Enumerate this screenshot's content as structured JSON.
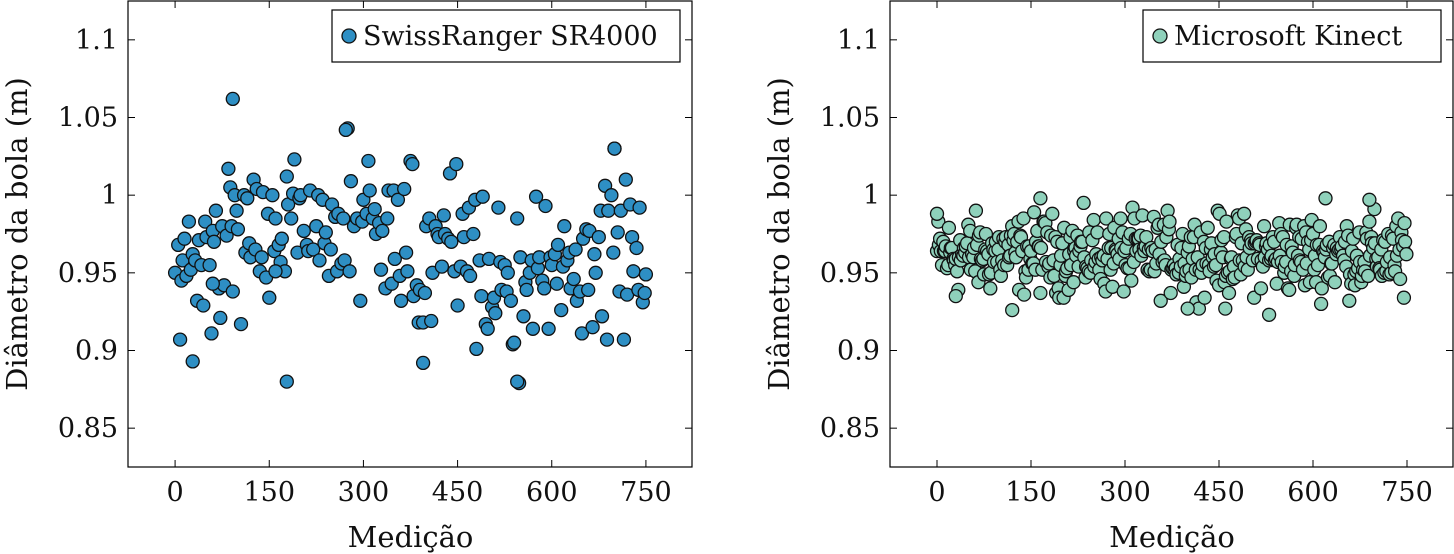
{
  "chart_data": [
    {
      "type": "scatter",
      "xlabel": "Medição",
      "ylabel": "Diâmetro da bola (m)",
      "xlim": [
        -75,
        825
      ],
      "ylim": [
        0.825,
        1.125
      ],
      "xticks": [
        0,
        150,
        300,
        450,
        600,
        750
      ],
      "xtick_labels": [
        "0",
        "150",
        "300",
        "450",
        "600",
        "750"
      ],
      "yticks": [
        0.85,
        0.9,
        0.95,
        1.0,
        1.05,
        1.1
      ],
      "ytick_labels": [
        "0.85",
        "0.9",
        "0.95",
        "1",
        "1.05",
        "1.1"
      ],
      "grid": false,
      "legend_position": "top-right",
      "series": [
        {
          "name": "SwissRanger SR4000",
          "color": "#2e8fc4",
          "x": [
            0,
            5,
            10,
            12,
            15,
            18,
            22,
            25,
            28,
            32,
            35,
            38,
            42,
            45,
            48,
            50,
            55,
            58,
            60,
            62,
            65,
            70,
            72,
            75,
            78,
            82,
            85,
            88,
            90,
            92,
            95,
            98,
            100,
            105,
            110,
            112,
            115,
            118,
            120,
            125,
            128,
            130,
            135,
            138,
            140,
            145,
            148,
            150,
            155,
            158,
            160,
            165,
            168,
            170,
            175,
            178,
            180,
            185,
            188,
            190,
            195,
            198,
            200,
            205,
            210,
            212,
            215,
            220,
            225,
            228,
            230,
            235,
            238,
            240,
            245,
            248,
            250,
            255,
            258,
            260,
            265,
            268,
            270,
            275,
            278,
            280,
            285,
            290,
            295,
            298,
            300,
            305,
            308,
            310,
            315,
            318,
            320,
            325,
            328,
            330,
            335,
            338,
            340,
            345,
            348,
            350,
            355,
            358,
            360,
            365,
            368,
            370,
            375,
            378,
            380,
            385,
            388,
            390,
            395,
            398,
            400,
            405,
            408,
            410,
            415,
            418,
            420,
            425,
            428,
            430,
            435,
            438,
            440,
            445,
            448,
            450,
            455,
            458,
            460,
            465,
            468,
            470,
            475,
            478,
            480,
            485,
            488,
            490,
            495,
            498,
            500,
            505,
            508,
            510,
            515,
            518,
            520,
            525,
            528,
            530,
            535,
            538,
            540,
            545,
            548,
            550,
            555,
            558,
            560,
            565,
            568,
            570,
            575,
            578,
            580,
            585,
            588,
            590,
            595,
            598,
            600,
            605,
            608,
            610,
            615,
            618,
            620,
            625,
            628,
            630,
            635,
            638,
            640,
            645,
            648,
            650,
            655,
            658,
            660,
            665,
            668,
            670,
            675,
            678,
            680,
            685,
            688,
            690,
            695,
            698,
            700,
            705,
            708,
            710,
            715,
            718,
            720,
            725,
            728,
            730,
            735,
            738,
            740,
            745,
            748,
            750,
            92,
            178,
            272,
            395,
            545,
            700,
            28,
            160,
            60,
            8
          ],
          "values": [
            0.95,
            0.968,
            0.945,
            0.958,
            0.972,
            0.948,
            0.983,
            0.952,
            0.962,
            0.958,
            0.932,
            0.971,
            0.955,
            0.929,
            0.983,
            0.973,
            0.955,
            0.911,
            0.977,
            0.97,
            0.99,
            0.94,
            0.921,
            0.98,
            0.942,
            0.974,
            1.017,
            1.005,
            0.98,
            0.938,
            1.0,
            0.99,
            0.978,
            0.917,
            1.0,
            0.963,
            0.998,
            0.969,
            0.96,
            1.01,
            0.965,
            1.004,
            0.951,
            0.96,
            1.002,
            0.947,
            0.988,
            0.934,
            1.0,
            0.964,
            0.985,
            0.968,
            0.957,
            0.972,
            0.951,
            1.012,
            0.994,
            0.985,
            1.001,
            1.023,
            0.963,
            0.998,
            1.0,
            0.977,
            0.968,
            0.964,
            1.003,
            0.965,
            0.98,
            1.0,
            0.958,
            0.997,
            0.969,
            0.976,
            0.948,
            0.965,
            0.994,
            0.986,
            0.951,
            0.988,
            0.956,
            0.985,
            0.958,
            1.043,
            0.951,
            1.009,
            0.98,
            0.985,
            0.932,
            0.983,
            0.997,
            0.988,
            1.022,
            1.003,
            0.985,
            0.991,
            0.975,
            0.982,
            0.952,
            0.977,
            0.94,
            0.985,
            1.003,
            0.943,
            1.003,
            0.959,
            0.997,
            0.948,
            0.932,
            1.004,
            0.963,
            0.951,
            1.022,
            1.02,
            0.935,
            0.942,
            0.918,
            0.939,
            0.918,
            0.937,
            0.98,
            0.985,
            0.919,
            0.95,
            0.98,
            0.975,
            0.973,
            0.954,
            0.987,
            0.975,
            0.972,
            1.014,
            0.97,
            0.951,
            1.02,
            0.929,
            0.954,
            0.988,
            0.973,
            0.951,
            0.992,
            0.948,
            0.975,
            0.997,
            0.901,
            0.958,
            0.935,
            0.999,
            0.917,
            0.914,
            0.959,
            0.928,
            0.934,
            0.924,
            0.992,
            0.957,
            0.939,
            0.955,
            0.938,
            0.95,
            0.932,
            0.904,
            0.905,
            0.985,
            0.879,
            0.96,
            0.922,
            0.944,
            0.939,
            0.95,
            0.958,
            0.914,
            0.999,
            0.953,
            0.96,
            0.945,
            0.94,
            0.993,
            0.914,
            0.96,
            0.955,
            0.962,
            0.943,
            0.968,
            0.926,
            0.954,
            0.98,
            0.958,
            0.963,
            0.94,
            0.946,
            0.965,
            0.932,
            0.938,
            0.911,
            0.972,
            0.978,
            0.939,
            0.977,
            0.915,
            0.962,
            0.95,
            0.973,
            0.99,
            0.922,
            1.006,
            0.907,
            0.99,
            1.0,
            0.963,
            1.03,
            0.976,
            0.938,
            0.99,
            0.907,
            1.01,
            0.936,
            0.994,
            0.973,
            0.951,
            0.966,
            0.939,
            0.992,
            0.931,
            0.937,
            0.949,
            1.062,
            0.88,
            1.042,
            0.892,
            0.88,
            1.03,
            0.893,
            0.951,
            0.943,
            0.907
          ]
        },
        {
          "name": "Microsoft Kinect",
          "color": "#8fd1bb",
          "x": [],
          "values": []
        }
      ]
    }
  ]
}
